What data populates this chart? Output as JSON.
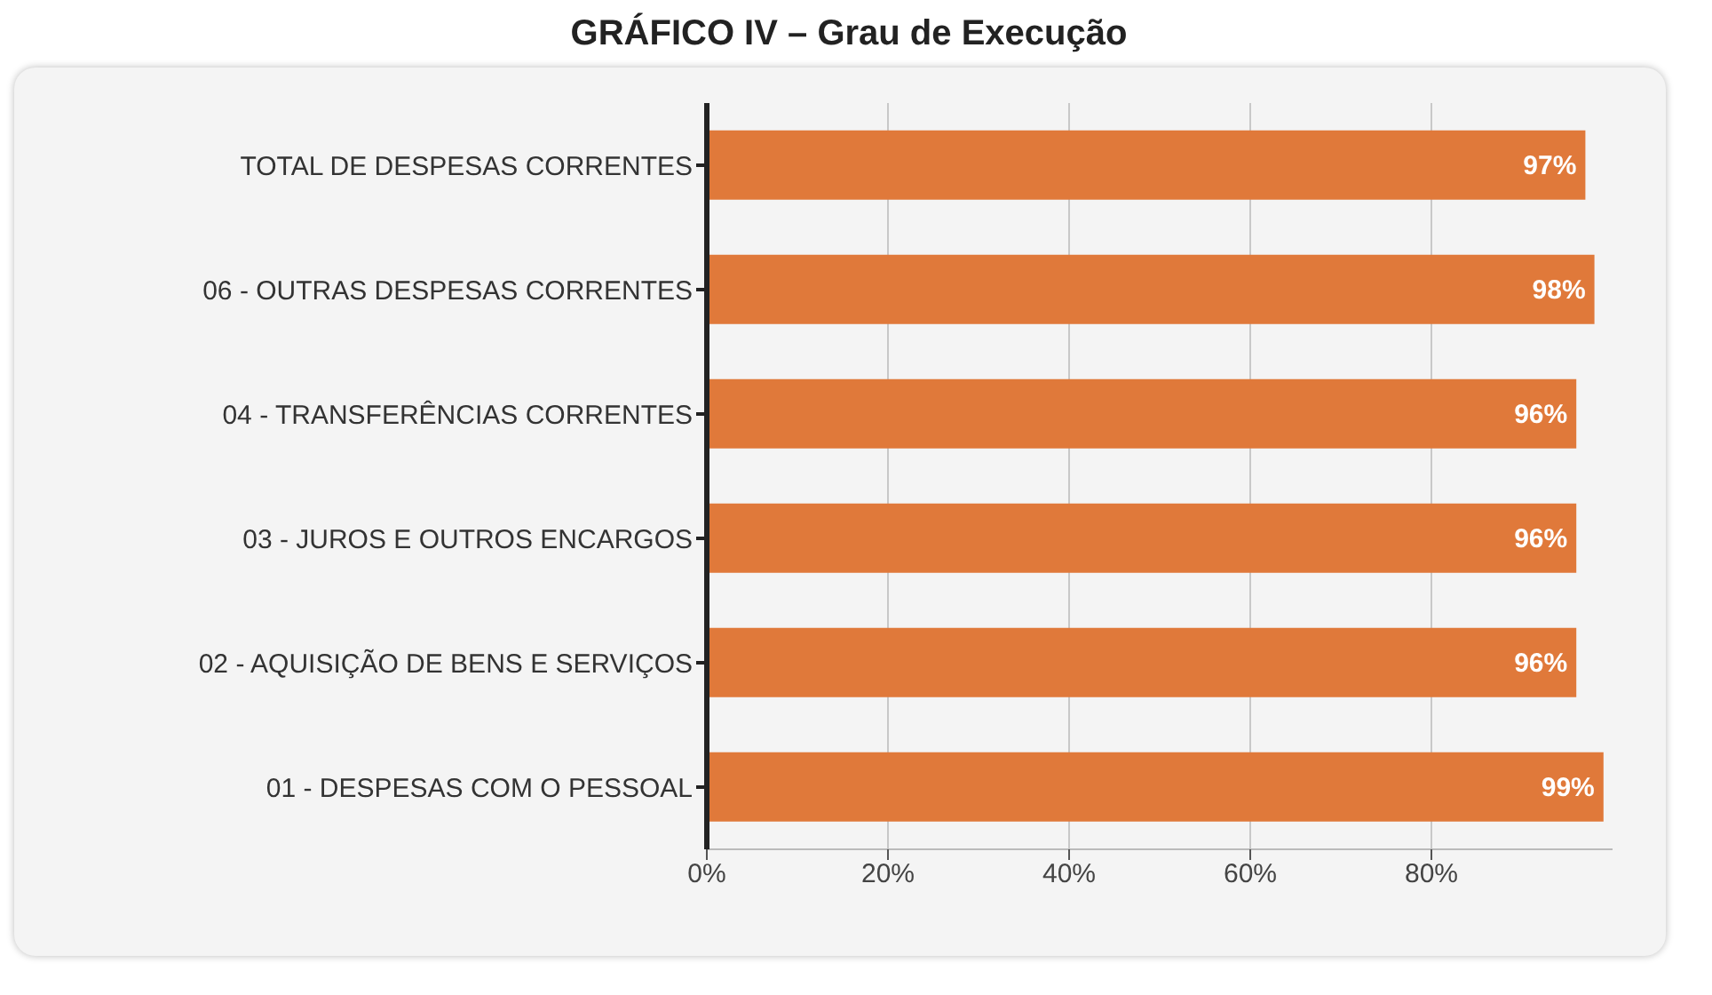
{
  "chart_data": {
    "type": "bar",
    "orientation": "horizontal",
    "title": "GRÁFICO IV – Grau de Execução",
    "categories": [
      "TOTAL DE DESPESAS CORRENTES",
      "06 - OUTRAS DESPESAS CORRENTES",
      "04 - TRANSFERÊNCIAS CORRENTES",
      "03 - JUROS E OUTROS ENCARGOS",
      "02 - AQUISIÇÃO DE BENS E SERVIÇOS",
      "01 - DESPESAS COM O PESSOAL"
    ],
    "values": [
      97,
      98,
      96,
      96,
      96,
      99
    ],
    "value_labels": [
      "97%",
      "98%",
      "96%",
      "96%",
      "96%",
      "99%"
    ],
    "color": "#e0793a",
    "xlim": [
      0,
      100
    ],
    "xticks": [
      {
        "value": 0,
        "label": "0%"
      },
      {
        "value": 20,
        "label": "20%"
      },
      {
        "value": 40,
        "label": "40%"
      },
      {
        "value": 60,
        "label": "60%"
      },
      {
        "value": 80,
        "label": "80%"
      }
    ],
    "grid": "x"
  }
}
